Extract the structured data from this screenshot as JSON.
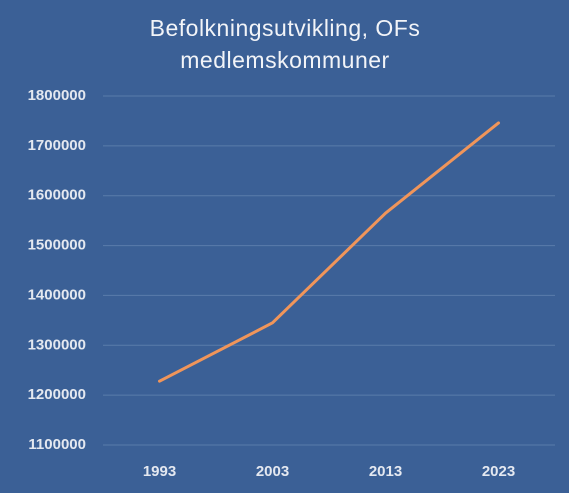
{
  "chart_data": {
    "type": "line",
    "title": "Befolkningsutvikling,  OFs medlemskommuner",
    "categories": [
      "1993",
      "2003",
      "2013",
      "2023"
    ],
    "series": [
      {
        "color": "#f0955a",
        "values": [
          1228000,
          1345000,
          1565000,
          1746000
        ]
      }
    ],
    "ylim": [
      1100000,
      1800000
    ],
    "yticks": [
      1100000,
      1200000,
      1300000,
      1400000,
      1500000,
      1600000,
      1700000,
      1800000
    ],
    "grid": true
  }
}
